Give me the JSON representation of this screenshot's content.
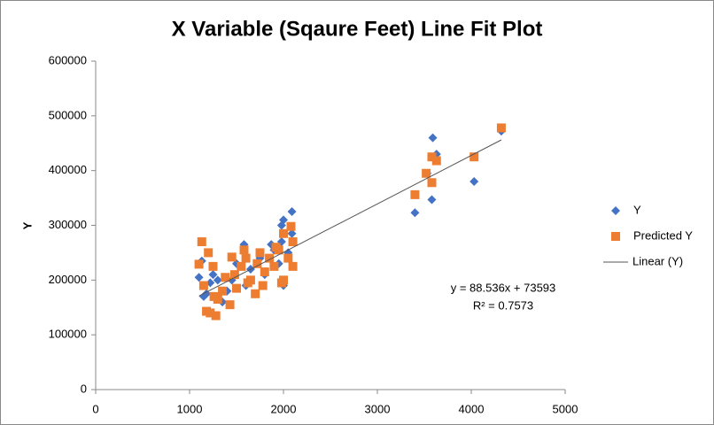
{
  "chart_data": {
    "type": "scatter",
    "title": "X Variable (Sqaure Feet) Line Fit  Plot",
    "ylabel": "Y",
    "xlim": [
      0,
      5000
    ],
    "xticks": [
      0,
      1000,
      2000,
      3000,
      4000,
      5000
    ],
    "ylim": [
      0,
      600000
    ],
    "yticks": [
      0,
      100000,
      200000,
      300000,
      400000,
      500000,
      600000
    ],
    "grid": false,
    "legend": "right",
    "series": [
      {
        "name": "Y",
        "color": "#4472c4",
        "marker": "diamond",
        "x": [
          4320,
          3590,
          3630,
          3400,
          3580,
          4030,
          3530,
          2090,
          2000,
          1980,
          2090,
          1980,
          1870,
          1580,
          2000,
          1130,
          1100,
          1180,
          1250,
          1300,
          1400,
          1500,
          1700,
          1750,
          1900,
          1650,
          1220,
          1350,
          1800,
          2050,
          1450,
          1600,
          1950,
          1150
        ],
        "values": [
          472000,
          460000,
          430000,
          323000,
          347000,
          380000,
          395000,
          325000,
          310000,
          300000,
          285000,
          270000,
          265000,
          265000,
          190000,
          235000,
          205000,
          175000,
          210000,
          200000,
          180000,
          230000,
          175000,
          240000,
          255000,
          220000,
          195000,
          160000,
          210000,
          250000,
          200000,
          190000,
          230000,
          170000
        ]
      },
      {
        "name": "Predicted Y",
        "color": "#ed7d31",
        "marker": "square",
        "x": [
          4320,
          4030,
          3580,
          3520,
          3630,
          3580,
          3400,
          1130,
          1100,
          1200,
          1250,
          1180,
          1280,
          1300,
          1380,
          1430,
          1450,
          1500,
          1550,
          1580,
          1600,
          1650,
          1700,
          1720,
          1750,
          1800,
          1850,
          1900,
          1950,
          1980,
          2000,
          2050,
          2080,
          2100,
          2100,
          1150,
          1220,
          1350,
          1480,
          1620,
          1780,
          1920,
          2000,
          1260
        ],
        "values": [
          478000,
          425000,
          425000,
          395000,
          418000,
          378000,
          356000,
          270000,
          229000,
          250000,
          225000,
          143000,
          135000,
          165000,
          205000,
          155000,
          242000,
          185000,
          225000,
          255000,
          240000,
          200000,
          175000,
          230000,
          250000,
          215000,
          240000,
          225000,
          255000,
          195000,
          285000,
          240000,
          298000,
          270000,
          225000,
          190000,
          140000,
          180000,
          210000,
          195000,
          190000,
          260000,
          200000,
          170000
        ]
      }
    ],
    "trendline": {
      "name": "Linear (Y)",
      "color": "#555555",
      "slope": 88.536,
      "intercept": 73593,
      "equation": "y = 88.536x + 73593",
      "r2_label": "R² = 0.7573"
    }
  }
}
